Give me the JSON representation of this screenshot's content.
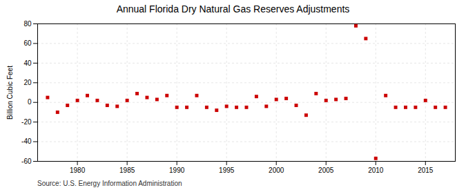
{
  "chart_data": {
    "type": "scatter",
    "title": "Annual Florida Dry Natural Gas Reserves Adjustments",
    "ylabel": "Billion Cubic Feet",
    "annotation": "Source: U.S. Energy Information Administration",
    "x": [
      1977,
      1978,
      1979,
      1980,
      1981,
      1982,
      1983,
      1984,
      1985,
      1986,
      1987,
      1988,
      1989,
      1990,
      1991,
      1992,
      1993,
      1994,
      1995,
      1996,
      1997,
      1998,
      1999,
      2000,
      2001,
      2002,
      2003,
      2004,
      2005,
      2006,
      2007,
      2008,
      2009,
      2010,
      2011,
      2012,
      2013,
      2014,
      2015,
      2016,
      2017
    ],
    "values": [
      5,
      -10,
      -3,
      2,
      7,
      2,
      -3,
      -4,
      2,
      9,
      5,
      3,
      7,
      -5,
      -5,
      7,
      -5,
      -8,
      -4,
      -5,
      -5,
      6,
      -4,
      3,
      4,
      -3,
      -13,
      9,
      2,
      3,
      4,
      78,
      65,
      -57,
      7,
      -5,
      -5,
      -5,
      2,
      -5,
      -5
    ],
    "color": "#cc0000",
    "marker": "square",
    "xlim": [
      1976,
      2018
    ],
    "xticks": [
      1980,
      1985,
      1990,
      1995,
      2000,
      2005,
      2010,
      2015
    ],
    "ylim": [
      -60,
      80
    ],
    "yticks": [
      -60,
      -40,
      -20,
      0,
      20,
      40,
      60,
      80
    ],
    "grid": true
  }
}
